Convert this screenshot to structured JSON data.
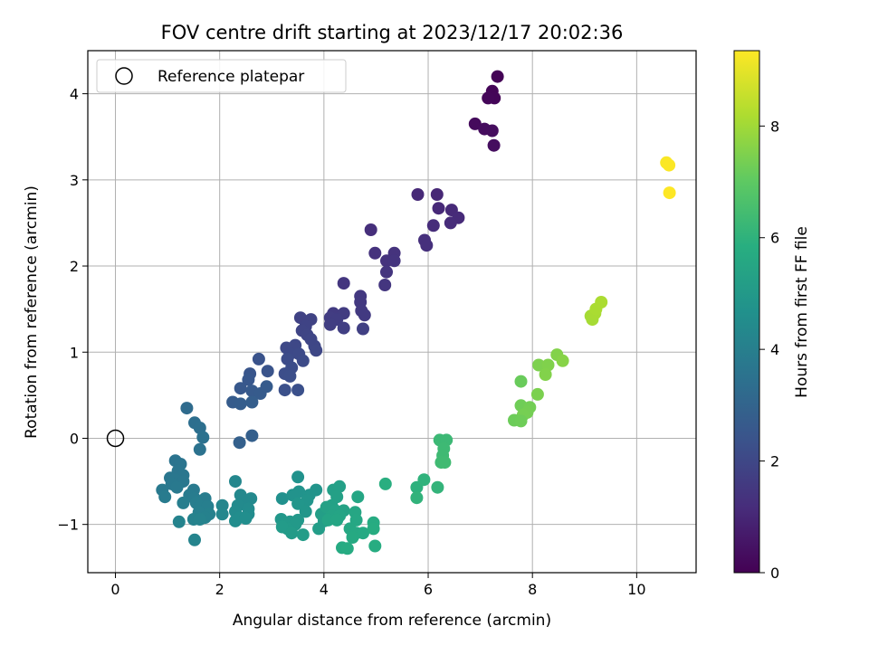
{
  "chart_data": {
    "type": "scatter",
    "title": "FOV centre drift starting at 2023/12/17 20:02:36",
    "xlabel": "Angular distance from reference (arcmin)",
    "ylabel": "Rotation from reference (arcmin)",
    "xlim": [
      -0.53,
      11.14
    ],
    "ylim": [
      -1.56,
      4.5
    ],
    "xticks": [
      0,
      2,
      4,
      6,
      8,
      10
    ],
    "yticks": [
      -1,
      0,
      1,
      2,
      3,
      4
    ],
    "grid": true,
    "legend": {
      "position": "top-left",
      "entries": [
        "Reference platepar"
      ]
    },
    "reference_point": {
      "x": 0,
      "y": 0
    },
    "colorbar": {
      "label": "Hours from first FF file",
      "colormap": "viridis",
      "range": [
        0,
        9.35
      ],
      "ticks": [
        0,
        2,
        4,
        6,
        8
      ]
    },
    "series": [
      {
        "points": [
          {
            "x": 7.33,
            "y": 4.2,
            "t": 0.05
          },
          {
            "x": 7.23,
            "y": 4.03,
            "t": 0.1
          },
          {
            "x": 7.27,
            "y": 3.95,
            "t": 0.12
          },
          {
            "x": 7.15,
            "y": 3.95,
            "t": 0.14
          },
          {
            "x": 6.9,
            "y": 3.65,
            "t": 0.25
          },
          {
            "x": 7.08,
            "y": 3.59,
            "t": 0.3
          },
          {
            "x": 7.23,
            "y": 3.57,
            "t": 0.32
          },
          {
            "x": 7.26,
            "y": 3.4,
            "t": 0.35
          },
          {
            "x": 6.17,
            "y": 2.83,
            "t": 1.05
          },
          {
            "x": 5.8,
            "y": 2.83,
            "t": 1.08
          },
          {
            "x": 6.2,
            "y": 2.67,
            "t": 1.1
          },
          {
            "x": 6.45,
            "y": 2.65,
            "t": 1.12
          },
          {
            "x": 6.58,
            "y": 2.56,
            "t": 1.15
          },
          {
            "x": 6.43,
            "y": 2.5,
            "t": 1.18
          },
          {
            "x": 6.1,
            "y": 2.47,
            "t": 1.2
          },
          {
            "x": 4.9,
            "y": 2.42,
            "t": 1.25
          },
          {
            "x": 5.93,
            "y": 2.3,
            "t": 1.28
          },
          {
            "x": 5.97,
            "y": 2.24,
            "t": 1.3
          },
          {
            "x": 4.98,
            "y": 2.15,
            "t": 1.35
          },
          {
            "x": 5.35,
            "y": 2.15,
            "t": 1.38
          },
          {
            "x": 5.2,
            "y": 2.06,
            "t": 1.4
          },
          {
            "x": 5.35,
            "y": 2.06,
            "t": 1.42
          },
          {
            "x": 5.2,
            "y": 1.93,
            "t": 1.45
          },
          {
            "x": 5.17,
            "y": 1.78,
            "t": 1.48
          },
          {
            "x": 4.38,
            "y": 1.8,
            "t": 1.5
          },
          {
            "x": 4.7,
            "y": 1.65,
            "t": 1.55
          },
          {
            "x": 4.7,
            "y": 1.58,
            "t": 1.58
          },
          {
            "x": 4.72,
            "y": 1.48,
            "t": 1.6
          },
          {
            "x": 4.78,
            "y": 1.43,
            "t": 1.62
          },
          {
            "x": 4.18,
            "y": 1.45,
            "t": 1.65
          },
          {
            "x": 4.38,
            "y": 1.45,
            "t": 1.68
          },
          {
            "x": 4.12,
            "y": 1.4,
            "t": 1.7
          },
          {
            "x": 4.25,
            "y": 1.38,
            "t": 1.72
          },
          {
            "x": 4.12,
            "y": 1.32,
            "t": 1.75
          },
          {
            "x": 4.38,
            "y": 1.28,
            "t": 1.78
          },
          {
            "x": 4.75,
            "y": 1.27,
            "t": 1.8
          },
          {
            "x": 3.55,
            "y": 1.4,
            "t": 1.85
          },
          {
            "x": 3.75,
            "y": 1.38,
            "t": 1.88
          },
          {
            "x": 3.65,
            "y": 1.3,
            "t": 1.9
          },
          {
            "x": 3.58,
            "y": 1.25,
            "t": 1.92
          },
          {
            "x": 3.68,
            "y": 1.2,
            "t": 1.95
          },
          {
            "x": 3.75,
            "y": 1.15,
            "t": 1.98
          },
          {
            "x": 3.82,
            "y": 1.07,
            "t": 2.0
          },
          {
            "x": 3.85,
            "y": 1.02,
            "t": 2.02
          },
          {
            "x": 3.45,
            "y": 1.08,
            "t": 2.05
          },
          {
            "x": 3.28,
            "y": 1.05,
            "t": 2.08
          },
          {
            "x": 3.35,
            "y": 0.98,
            "t": 2.1
          },
          {
            "x": 3.52,
            "y": 0.98,
            "t": 2.12
          },
          {
            "x": 3.6,
            "y": 0.9,
            "t": 2.15
          },
          {
            "x": 3.3,
            "y": 0.92,
            "t": 2.18
          },
          {
            "x": 3.38,
            "y": 0.82,
            "t": 2.2
          },
          {
            "x": 3.25,
            "y": 0.75,
            "t": 2.25
          },
          {
            "x": 3.35,
            "y": 0.72,
            "t": 2.28
          },
          {
            "x": 3.25,
            "y": 0.56,
            "t": 2.3
          },
          {
            "x": 3.5,
            "y": 0.56,
            "t": 2.32
          },
          {
            "x": 2.75,
            "y": 0.92,
            "t": 2.4
          },
          {
            "x": 2.92,
            "y": 0.78,
            "t": 2.45
          },
          {
            "x": 2.58,
            "y": 0.75,
            "t": 2.5
          },
          {
            "x": 2.55,
            "y": 0.68,
            "t": 2.55
          },
          {
            "x": 2.4,
            "y": 0.58,
            "t": 2.6
          },
          {
            "x": 2.62,
            "y": 0.55,
            "t": 2.65
          },
          {
            "x": 2.78,
            "y": 0.52,
            "t": 2.7
          },
          {
            "x": 2.9,
            "y": 0.6,
            "t": 2.72
          },
          {
            "x": 2.25,
            "y": 0.42,
            "t": 2.75
          },
          {
            "x": 2.4,
            "y": 0.4,
            "t": 2.78
          },
          {
            "x": 2.62,
            "y": 0.42,
            "t": 2.8
          },
          {
            "x": 2.62,
            "y": 0.03,
            "t": 2.85
          },
          {
            "x": 2.38,
            "y": -0.05,
            "t": 2.88
          },
          {
            "x": 1.37,
            "y": 0.35,
            "t": 3.3
          },
          {
            "x": 1.52,
            "y": 0.18,
            "t": 3.4
          },
          {
            "x": 1.62,
            "y": 0.12,
            "t": 3.45
          },
          {
            "x": 1.68,
            "y": 0.01,
            "t": 3.5
          },
          {
            "x": 1.62,
            "y": -0.13,
            "t": 3.55
          },
          {
            "x": 1.15,
            "y": -0.26,
            "t": 3.6
          },
          {
            "x": 1.25,
            "y": -0.3,
            "t": 3.62
          },
          {
            "x": 1.2,
            "y": -0.38,
            "t": 3.65
          },
          {
            "x": 1.3,
            "y": -0.43,
            "t": 3.68
          },
          {
            "x": 1.05,
            "y": -0.46,
            "t": 3.7
          },
          {
            "x": 1.15,
            "y": -0.48,
            "t": 3.72
          },
          {
            "x": 1.3,
            "y": -0.5,
            "t": 3.75
          },
          {
            "x": 1.08,
            "y": -0.53,
            "t": 3.78
          },
          {
            "x": 1.18,
            "y": -0.57,
            "t": 3.8
          },
          {
            "x": 0.9,
            "y": -0.6,
            "t": 3.82
          },
          {
            "x": 1.5,
            "y": -0.6,
            "t": 3.85
          },
          {
            "x": 1.42,
            "y": -0.66,
            "t": 3.88
          },
          {
            "x": 0.95,
            "y": -0.68,
            "t": 3.9
          },
          {
            "x": 1.52,
            "y": -0.7,
            "t": 3.92
          },
          {
            "x": 1.72,
            "y": -0.7,
            "t": 3.95
          },
          {
            "x": 1.55,
            "y": -0.75,
            "t": 3.98
          },
          {
            "x": 1.3,
            "y": -0.75,
            "t": 4.0
          },
          {
            "x": 1.62,
            "y": -0.79,
            "t": 4.02
          },
          {
            "x": 1.77,
            "y": -0.79,
            "t": 4.05
          },
          {
            "x": 1.6,
            "y": -0.86,
            "t": 4.08
          },
          {
            "x": 1.8,
            "y": -0.88,
            "t": 4.1
          },
          {
            "x": 1.72,
            "y": -0.92,
            "t": 4.12
          },
          {
            "x": 1.5,
            "y": -0.94,
            "t": 4.15
          },
          {
            "x": 1.62,
            "y": -0.94,
            "t": 4.18
          },
          {
            "x": 1.22,
            "y": -0.97,
            "t": 4.2
          },
          {
            "x": 1.52,
            "y": -1.18,
            "t": 4.22
          },
          {
            "x": 2.05,
            "y": -0.78,
            "t": 4.3
          },
          {
            "x": 2.05,
            "y": -0.88,
            "t": 4.32
          },
          {
            "x": 2.3,
            "y": -0.5,
            "t": 4.35
          },
          {
            "x": 2.4,
            "y": -0.66,
            "t": 4.38
          },
          {
            "x": 2.6,
            "y": -0.7,
            "t": 4.4
          },
          {
            "x": 2.5,
            "y": -0.75,
            "t": 4.42
          },
          {
            "x": 2.35,
            "y": -0.78,
            "t": 4.45
          },
          {
            "x": 2.55,
            "y": -0.82,
            "t": 4.48
          },
          {
            "x": 2.3,
            "y": -0.85,
            "t": 4.5
          },
          {
            "x": 2.55,
            "y": -0.88,
            "t": 4.52
          },
          {
            "x": 2.38,
            "y": -0.92,
            "t": 4.55
          },
          {
            "x": 2.3,
            "y": -0.96,
            "t": 4.58
          },
          {
            "x": 2.5,
            "y": -0.93,
            "t": 4.6
          }
        ]
      },
      {
        "points": [
          {
            "x": 3.2,
            "y": -0.7,
            "t": 4.7
          },
          {
            "x": 3.5,
            "y": -0.45,
            "t": 4.75
          },
          {
            "x": 3.52,
            "y": -0.62,
            "t": 4.78
          },
          {
            "x": 3.4,
            "y": -0.66,
            "t": 4.8
          },
          {
            "x": 3.72,
            "y": -0.66,
            "t": 4.82
          },
          {
            "x": 3.85,
            "y": -0.6,
            "t": 4.85
          },
          {
            "x": 3.68,
            "y": -0.72,
            "t": 4.88
          },
          {
            "x": 3.5,
            "y": -0.76,
            "t": 4.9
          },
          {
            "x": 3.65,
            "y": -0.85,
            "t": 4.92
          },
          {
            "x": 3.18,
            "y": -0.94,
            "t": 4.95
          },
          {
            "x": 3.35,
            "y": -0.97,
            "t": 4.98
          },
          {
            "x": 3.5,
            "y": -0.95,
            "t": 5.0
          },
          {
            "x": 3.25,
            "y": -1.0,
            "t": 5.02
          },
          {
            "x": 3.45,
            "y": -1.0,
            "t": 5.05
          },
          {
            "x": 3.3,
            "y": -1.05,
            "t": 5.08
          },
          {
            "x": 3.2,
            "y": -1.03,
            "t": 5.1
          },
          {
            "x": 3.38,
            "y": -1.1,
            "t": 5.12
          },
          {
            "x": 3.6,
            "y": -1.12,
            "t": 5.15
          },
          {
            "x": 3.9,
            "y": -1.05,
            "t": 5.18
          },
          {
            "x": 4.0,
            "y": -0.96,
            "t": 5.2
          },
          {
            "x": 3.95,
            "y": -0.88,
            "t": 5.22
          },
          {
            "x": 4.05,
            "y": -0.85,
            "t": 5.25
          },
          {
            "x": 4.18,
            "y": -0.6,
            "t": 5.28
          },
          {
            "x": 4.3,
            "y": -0.56,
            "t": 5.3
          },
          {
            "x": 4.25,
            "y": -0.68,
            "t": 5.32
          },
          {
            "x": 4.15,
            "y": -0.78,
            "t": 5.35
          },
          {
            "x": 4.05,
            "y": -0.8,
            "t": 5.38
          },
          {
            "x": 4.22,
            "y": -0.84,
            "t": 5.4
          },
          {
            "x": 4.38,
            "y": -0.84,
            "t": 5.42
          },
          {
            "x": 4.15,
            "y": -0.9,
            "t": 5.45
          },
          {
            "x": 4.3,
            "y": -0.9,
            "t": 5.48
          },
          {
            "x": 4.08,
            "y": -0.95,
            "t": 5.5
          },
          {
            "x": 4.25,
            "y": -0.95,
            "t": 5.52
          },
          {
            "x": 4.65,
            "y": -0.68,
            "t": 5.55
          },
          {
            "x": 4.6,
            "y": -0.86,
            "t": 5.58
          },
          {
            "x": 4.62,
            "y": -0.95,
            "t": 5.6
          },
          {
            "x": 4.5,
            "y": -1.05,
            "t": 5.62
          },
          {
            "x": 4.62,
            "y": -1.1,
            "t": 5.65
          },
          {
            "x": 4.75,
            "y": -1.1,
            "t": 5.68
          },
          {
            "x": 4.55,
            "y": -1.15,
            "t": 5.7
          },
          {
            "x": 4.35,
            "y": -1.27,
            "t": 5.72
          },
          {
            "x": 4.45,
            "y": -1.28,
            "t": 5.75
          },
          {
            "x": 4.95,
            "y": -0.98,
            "t": 5.78
          },
          {
            "x": 4.95,
            "y": -1.05,
            "t": 5.8
          },
          {
            "x": 4.98,
            "y": -1.25,
            "t": 5.82
          },
          {
            "x": 5.18,
            "y": -0.53,
            "t": 5.9
          },
          {
            "x": 5.78,
            "y": -0.57,
            "t": 6.0
          },
          {
            "x": 5.92,
            "y": -0.48,
            "t": 6.05
          },
          {
            "x": 5.78,
            "y": -0.69,
            "t": 6.08
          },
          {
            "x": 6.18,
            "y": -0.57,
            "t": 6.12
          },
          {
            "x": 6.22,
            "y": -0.02,
            "t": 6.3
          },
          {
            "x": 6.35,
            "y": -0.02,
            "t": 6.33
          },
          {
            "x": 6.3,
            "y": -0.12,
            "t": 6.35
          },
          {
            "x": 6.28,
            "y": -0.2,
            "t": 6.38
          },
          {
            "x": 6.25,
            "y": -0.28,
            "t": 6.4
          },
          {
            "x": 6.32,
            "y": -0.28,
            "t": 6.42
          }
        ]
      },
      {
        "points": [
          {
            "x": 7.78,
            "y": 0.66,
            "t": 7.2
          },
          {
            "x": 8.12,
            "y": 0.85,
            "t": 7.5
          },
          {
            "x": 8.3,
            "y": 0.85,
            "t": 7.55
          },
          {
            "x": 8.47,
            "y": 0.97,
            "t": 7.6
          },
          {
            "x": 8.58,
            "y": 0.9,
            "t": 7.65
          },
          {
            "x": 8.25,
            "y": 0.74,
            "t": 7.58
          },
          {
            "x": 8.1,
            "y": 0.51,
            "t": 7.48
          },
          {
            "x": 7.78,
            "y": 0.38,
            "t": 7.3
          },
          {
            "x": 7.95,
            "y": 0.36,
            "t": 7.35
          },
          {
            "x": 7.9,
            "y": 0.3,
            "t": 7.38
          },
          {
            "x": 7.82,
            "y": 0.27,
            "t": 7.4
          },
          {
            "x": 7.65,
            "y": 0.21,
            "t": 7.25
          },
          {
            "x": 7.78,
            "y": 0.2,
            "t": 7.28
          },
          {
            "x": 9.12,
            "y": 1.42,
            "t": 8.1
          },
          {
            "x": 9.15,
            "y": 1.38,
            "t": 8.12
          },
          {
            "x": 9.2,
            "y": 1.45,
            "t": 8.15
          },
          {
            "x": 9.22,
            "y": 1.5,
            "t": 8.18
          },
          {
            "x": 9.32,
            "y": 1.58,
            "t": 8.2
          },
          {
            "x": 10.57,
            "y": 3.2,
            "t": 9.3
          },
          {
            "x": 10.62,
            "y": 3.17,
            "t": 9.32
          },
          {
            "x": 10.63,
            "y": 2.85,
            "t": 9.35
          }
        ]
      }
    ]
  }
}
